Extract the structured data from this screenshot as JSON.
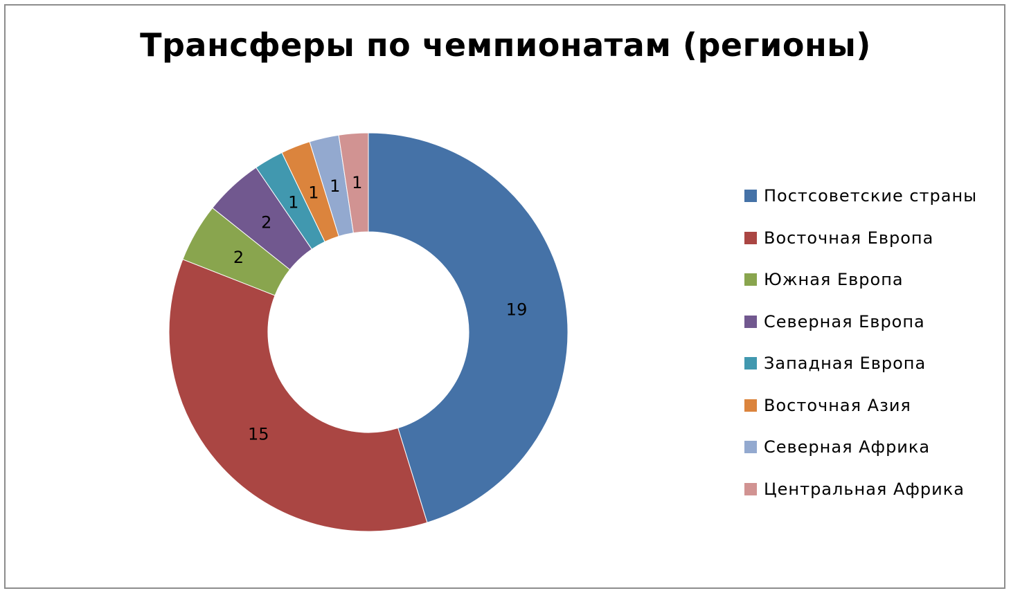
{
  "chart_data": {
    "type": "doughnut",
    "title": "Трансферы по чемпионатам (регионы)",
    "categories": [
      "Постсоветские страны",
      "Восточная Европа",
      "Южная Европа",
      "Северная Европа",
      "Западная Европа",
      "Восточная Азия",
      "Северная Африка",
      "Центральная Африка"
    ],
    "values": [
      19,
      15,
      2,
      2,
      1,
      1,
      1,
      1
    ],
    "colors": [
      "#4572a7",
      "#aa4643",
      "#89a54e",
      "#71588f",
      "#4198af",
      "#db843d",
      "#93a9cf",
      "#d19392"
    ],
    "data_labels": true,
    "legend_position": "right"
  }
}
